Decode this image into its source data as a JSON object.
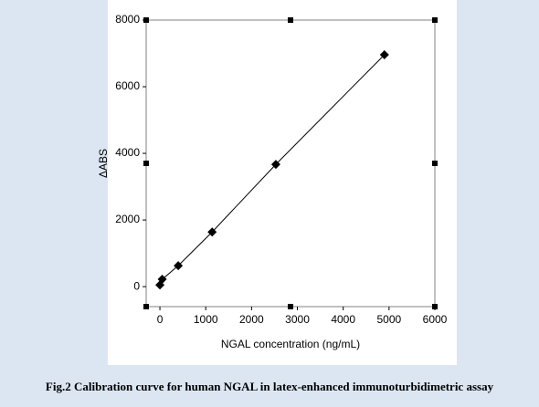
{
  "chart_data": {
    "type": "scatter",
    "x_label": "NGAL concentration (ng/mL)",
    "y_label": "ΔABS",
    "caption": "Fig.2 Calibration curve for human NGAL in latex-enhanced immunoturbidimetric assay",
    "x": [
      0,
      50,
      400,
      1140,
      2530,
      4900
    ],
    "values": [
      50,
      220,
      630,
      1640,
      3670,
      6960
    ],
    "color": "#000000",
    "trendline": true,
    "xlim": [
      -300,
      6000
    ],
    "xticks": [
      0,
      1000,
      2000,
      3000,
      4000,
      5000,
      6000
    ],
    "ylim": [
      -600,
      8000
    ],
    "yticks": [
      0,
      2000,
      4000,
      6000,
      8000
    ]
  }
}
